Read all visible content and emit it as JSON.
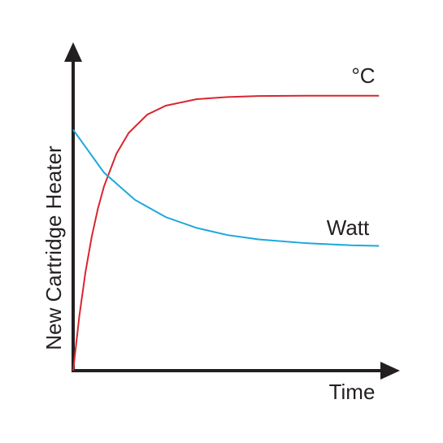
{
  "chart_data": {
    "type": "line",
    "x_label": "Time",
    "y_label": "New Cartridge Heater",
    "xlim": [
      0,
      100
    ],
    "ylim": [
      0,
      100
    ],
    "series": [
      {
        "name": "°C",
        "color": "#d9262e",
        "x": [
          0,
          2,
          4,
          6,
          8,
          10,
          14,
          18,
          24,
          30,
          40,
          50,
          60,
          75,
          90,
          99
        ],
        "values": [
          0,
          17.7,
          32,
          43.3,
          52.4,
          59.7,
          70.2,
          77,
          82.9,
          85.8,
          87.9,
          88.6,
          88.9,
          89,
          89,
          89
        ]
      },
      {
        "name": "Watt",
        "color": "#1ba8dd",
        "x": [
          0,
          10,
          20,
          30,
          40,
          50,
          60,
          75,
          90,
          99
        ],
        "values": [
          78,
          64.1,
          55.3,
          49.7,
          46.2,
          43.9,
          42.5,
          41.3,
          40.6,
          40.4
        ]
      }
    ]
  }
}
